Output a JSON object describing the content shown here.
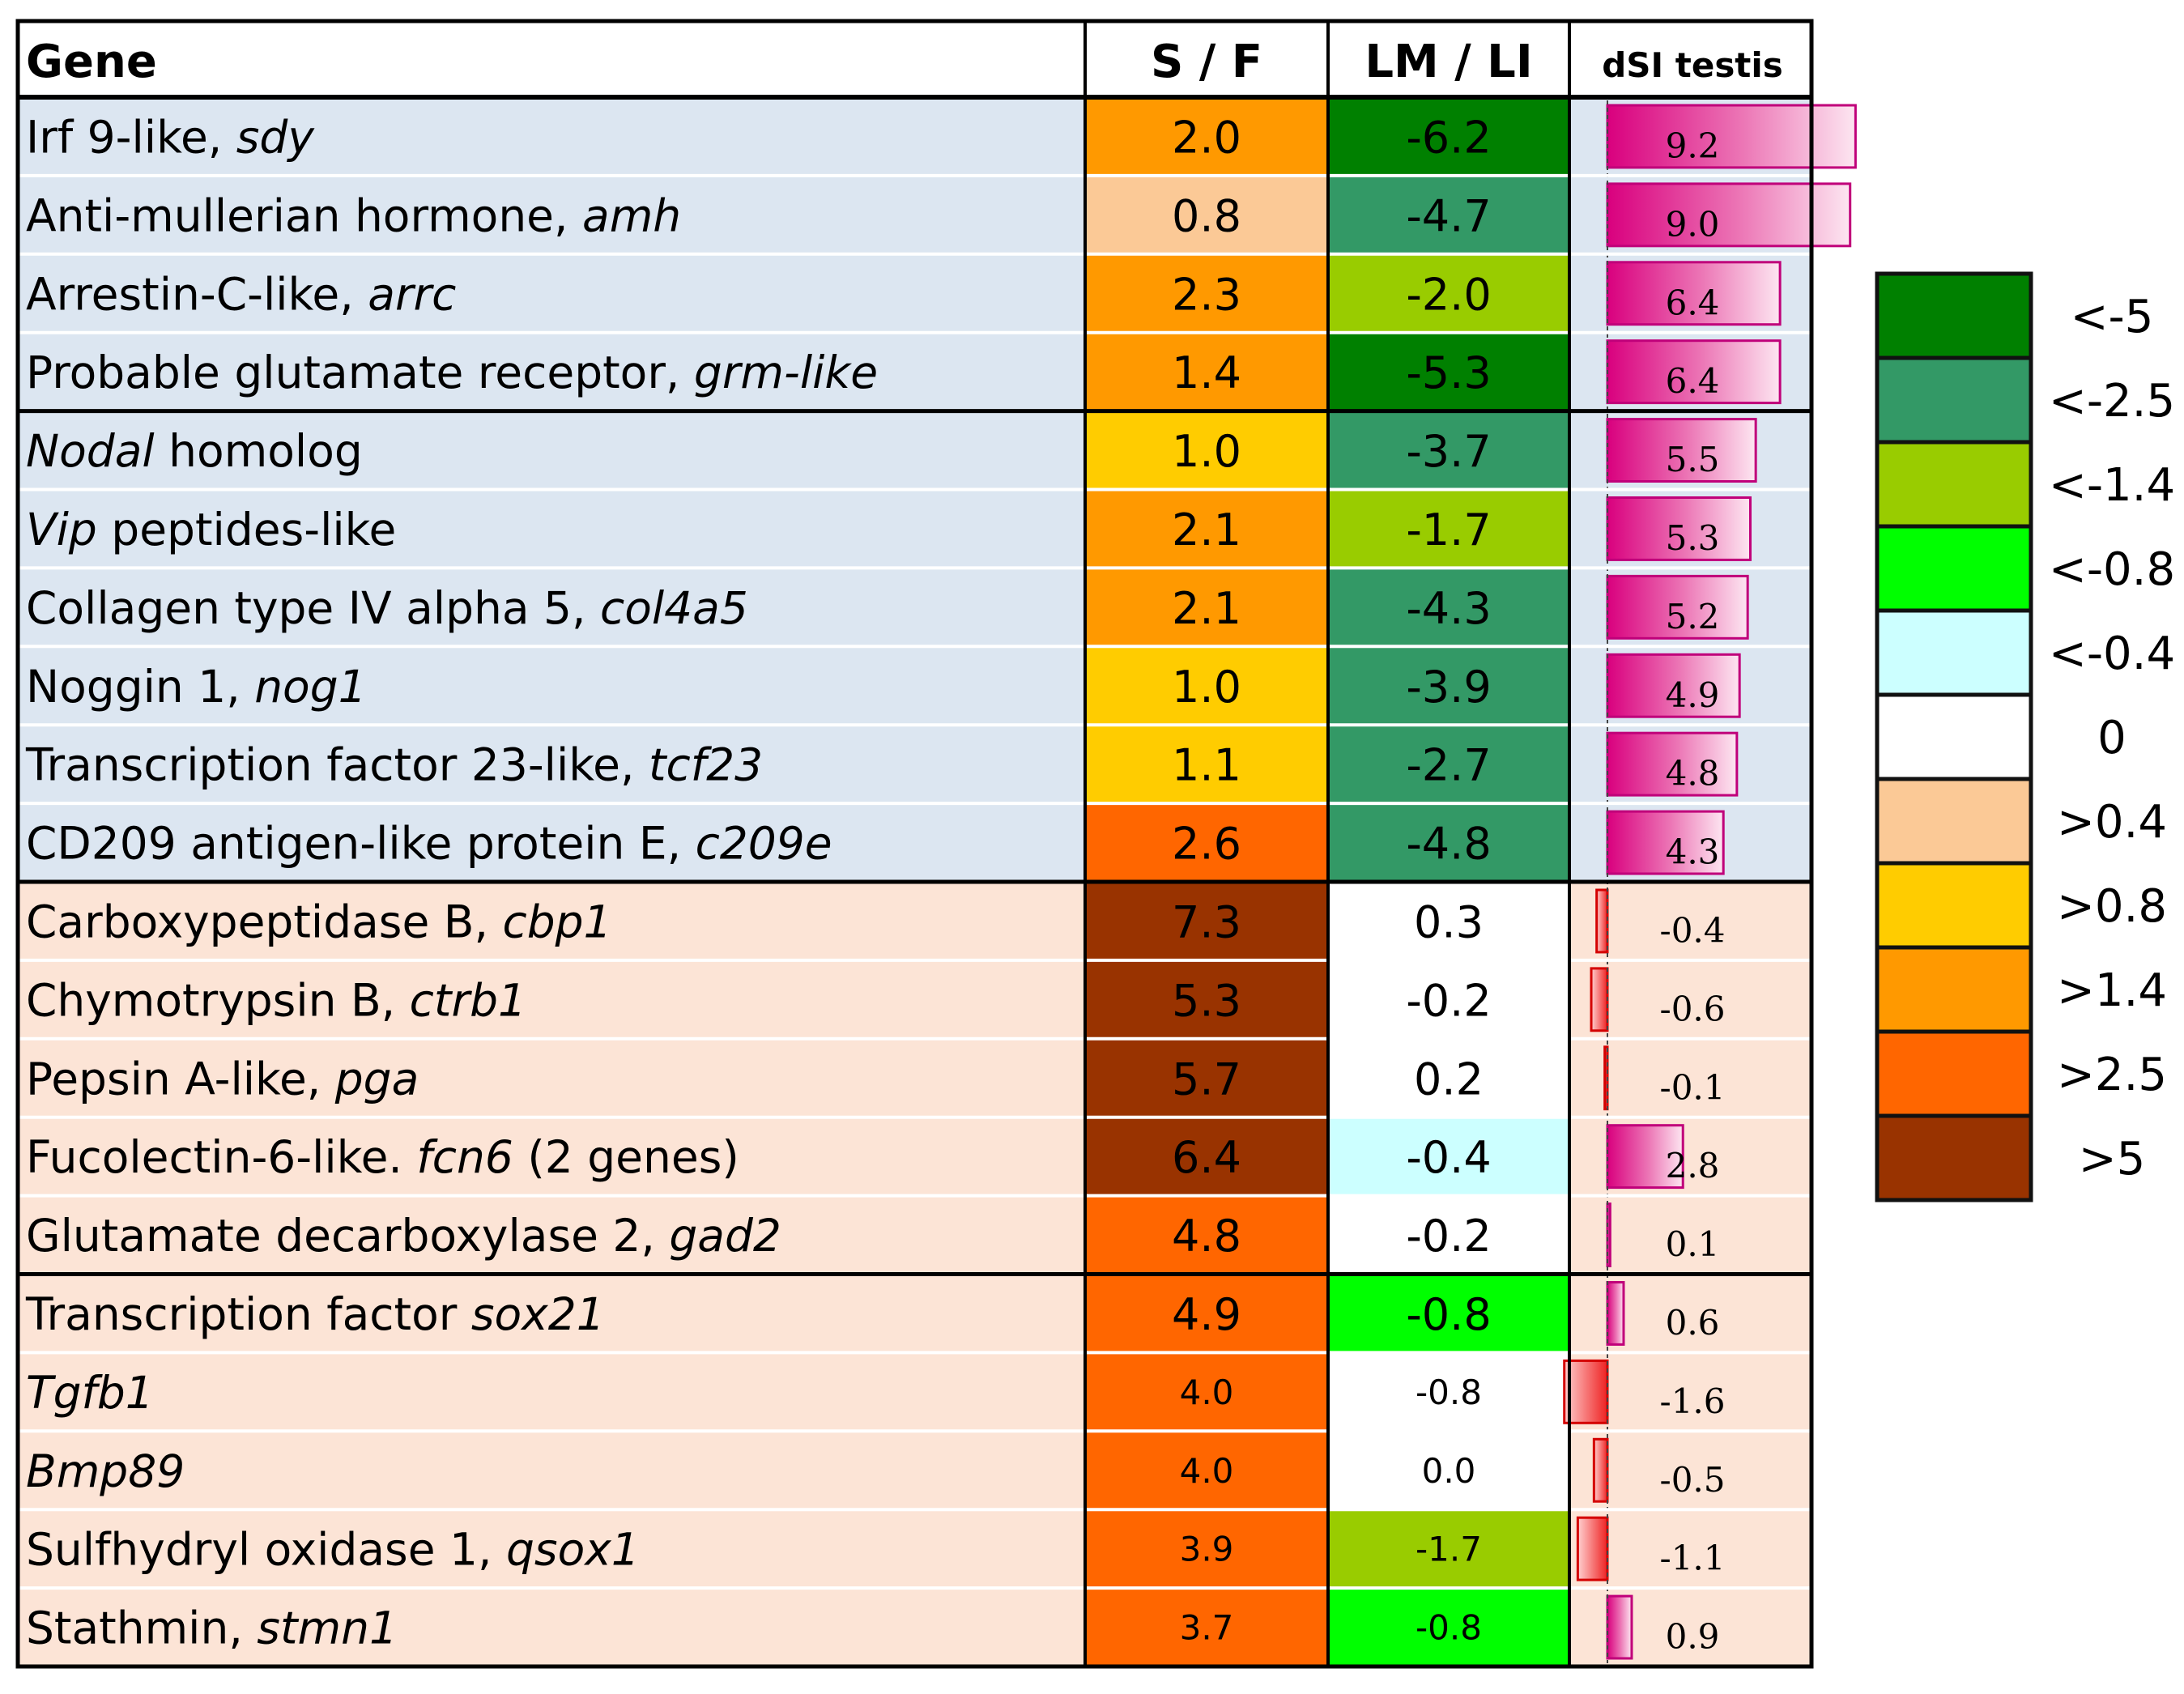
{
  "chart_data": {
    "type": "table",
    "headers": {
      "gene": "Gene",
      "sf": "S / F",
      "lmli": "LM / LI",
      "dsi": "dSI testis"
    },
    "rows": [
      {
        "name": "Irf 9-like, ",
        "italic": "sdy",
        "suffix": "",
        "sf": "2.0",
        "sf_color": "#ff9900",
        "lmli": "-6.2",
        "lmli_color": "#008000",
        "dsi": "9.2",
        "dsi_value": 9.2,
        "group": "male"
      },
      {
        "name": "Anti-mullerian hormone, ",
        "italic": "amh",
        "suffix": "",
        "sf": "0.8",
        "sf_color": "#fbc996",
        "lmli": "-4.7",
        "lmli_color": "#339966",
        "dsi": "9.0",
        "dsi_value": 9.0,
        "group": "male"
      },
      {
        "name": "Arrestin-C-like, ",
        "italic": "arrc",
        "suffix": "",
        "sf": "2.3",
        "sf_color": "#ff9900",
        "lmli": "-2.0",
        "lmli_color": "#99cc00",
        "dsi": "6.4",
        "dsi_value": 6.4,
        "group": "male"
      },
      {
        "name": "Probable glutamate receptor, ",
        "italic": "grm-like",
        "suffix": "",
        "sf": "1.4",
        "sf_color": "#ff9900",
        "lmli": "-5.3",
        "lmli_color": "#008000",
        "dsi": "6.4",
        "dsi_value": 6.4,
        "group": "male"
      },
      {
        "name": "",
        "italic": "Nodal",
        "suffix": "  homolog",
        "sf": "1.0",
        "sf_color": "#ffcc00",
        "lmli": "-3.7",
        "lmli_color": "#339966",
        "dsi": "5.5",
        "dsi_value": 5.5,
        "group": "male"
      },
      {
        "name": "",
        "italic": "Vip",
        "suffix": "  peptides-like",
        "sf": "2.1",
        "sf_color": "#ff9900",
        "lmli": "-1.7",
        "lmli_color": "#99cc00",
        "dsi": "5.3",
        "dsi_value": 5.3,
        "group": "male"
      },
      {
        "name": "Collagen type IV alpha 5, ",
        "italic": "col4a5",
        "suffix": "",
        "sf": "2.1",
        "sf_color": "#ff9900",
        "lmli": "-4.3",
        "lmli_color": "#339966",
        "dsi": "5.2",
        "dsi_value": 5.2,
        "group": "male"
      },
      {
        "name": "Noggin 1, ",
        "italic": "nog1",
        "suffix": "",
        "sf": "1.0",
        "sf_color": "#ffcc00",
        "lmli": "-3.9",
        "lmli_color": "#339966",
        "dsi": "4.9",
        "dsi_value": 4.9,
        "group": "male"
      },
      {
        "name": "Transcription factor 23-like, ",
        "italic": "tcf23",
        "suffix": "",
        "sf": "1.1",
        "sf_color": "#ffcc00",
        "lmli": "-2.7",
        "lmli_color": "#339966",
        "dsi": "4.8",
        "dsi_value": 4.8,
        "group": "male"
      },
      {
        "name": "CD209 antigen-like protein E, ",
        "italic": "c209e",
        "suffix": "",
        "sf": "2.6",
        "sf_color": "#ff6600",
        "lmli": "-4.8",
        "lmli_color": "#339966",
        "dsi": "4.3",
        "dsi_value": 4.3,
        "group": "male"
      },
      {
        "name": "Carboxypeptidase B, ",
        "italic": "cbp1",
        "suffix": "",
        "sf": "7.3",
        "sf_color": "#993300",
        "lmli": "0.3",
        "lmli_color": "#ffffff",
        "dsi": "-0.4",
        "dsi_value": -0.4,
        "group": "female"
      },
      {
        "name": "Chymotrypsin B, ",
        "italic": "ctrb1",
        "suffix": "",
        "sf": "5.3",
        "sf_color": "#993300",
        "lmli": "-0.2",
        "lmli_color": "#ffffff",
        "dsi": "-0.6",
        "dsi_value": -0.6,
        "group": "female"
      },
      {
        "name": "Pepsin A-like,  ",
        "italic": "pga",
        "suffix": "",
        "sf": "5.7",
        "sf_color": "#993300",
        "lmli": "0.2",
        "lmli_color": "#ffffff",
        "dsi": "-0.1",
        "dsi_value": -0.1,
        "group": "female"
      },
      {
        "name": "Fucolectin-6-like. ",
        "italic": "fcn6",
        "suffix": "  (2 genes)",
        "sf": "6.4",
        "sf_color": "#993300",
        "lmli": "-0.4",
        "lmli_color": "#ccffff",
        "dsi": "2.8",
        "dsi_value": 2.8,
        "group": "female"
      },
      {
        "name": "Glutamate decarboxylase 2, ",
        "italic": "gad2",
        "suffix": "",
        "sf": "4.8",
        "sf_color": "#ff6600",
        "lmli": "-0.2",
        "lmli_color": "#ffffff",
        "dsi": "0.1",
        "dsi_value": 0.1,
        "group": "female"
      },
      {
        "name": "Transcription factor ",
        "italic": "sox21",
        "suffix": "",
        "sf": "4.9",
        "sf_color": "#ff6600",
        "lmli": "-0.8",
        "lmli_color": "#00ff00",
        "dsi": "0.6",
        "dsi_value": 0.6,
        "group": "female"
      },
      {
        "name": "",
        "italic": "Tgfb1",
        "suffix": "",
        "sf": "4.0",
        "sf_color": "#ff6600",
        "lmli": "-0.8",
        "lmli_color": "#ffffff",
        "dsi": "-1.6",
        "dsi_value": -1.6,
        "group": "female"
      },
      {
        "name": "",
        "italic": "Bmp89",
        "suffix": "",
        "sf": "4.0",
        "sf_color": "#ff6600",
        "lmli": "0.0",
        "lmli_color": "#ffffff",
        "dsi": "-0.5",
        "dsi_value": -0.5,
        "group": "female"
      },
      {
        "name": "Sulfhydryl oxidase 1, ",
        "italic": "qsox1",
        "suffix": "",
        "sf": "3.9",
        "sf_color": "#ff6600",
        "lmli": "-1.7",
        "lmli_color": "#99cc00",
        "dsi": "-1.1",
        "dsi_value": -1.1,
        "group": "female"
      },
      {
        "name": "Stathmin, ",
        "italic": "stmn1",
        "suffix": "",
        "sf": "3.7",
        "sf_color": "#ff6600",
        "lmli": "-0.8",
        "lmli_color": "#00ff00",
        "dsi": "0.9",
        "dsi_value": 0.9,
        "group": "female"
      }
    ],
    "dsi_range": [
      -2.0,
      9.2
    ],
    "group_colors": {
      "male": "#dce6f1",
      "female": "#fce4d6"
    },
    "legend": [
      {
        "label": "<-5",
        "color": "#008000"
      },
      {
        "label": "<-2.5",
        "color": "#339966"
      },
      {
        "label": "<-1.4",
        "color": "#99cc00"
      },
      {
        "label": "<-0.8",
        "color": "#00ff00"
      },
      {
        "label": "<-0.4",
        "color": "#ccffff"
      },
      {
        "label": "0",
        "color": "#ffffff"
      },
      {
        "label": ">0.4",
        "color": "#fbc996"
      },
      {
        "label": ">0.8",
        "color": "#ffcc00"
      },
      {
        "label": ">1.4",
        "color": "#ff9900"
      },
      {
        "label": ">2.5",
        "color": "#ff6600"
      },
      {
        "label": ">5",
        "color": "#993300"
      }
    ]
  }
}
